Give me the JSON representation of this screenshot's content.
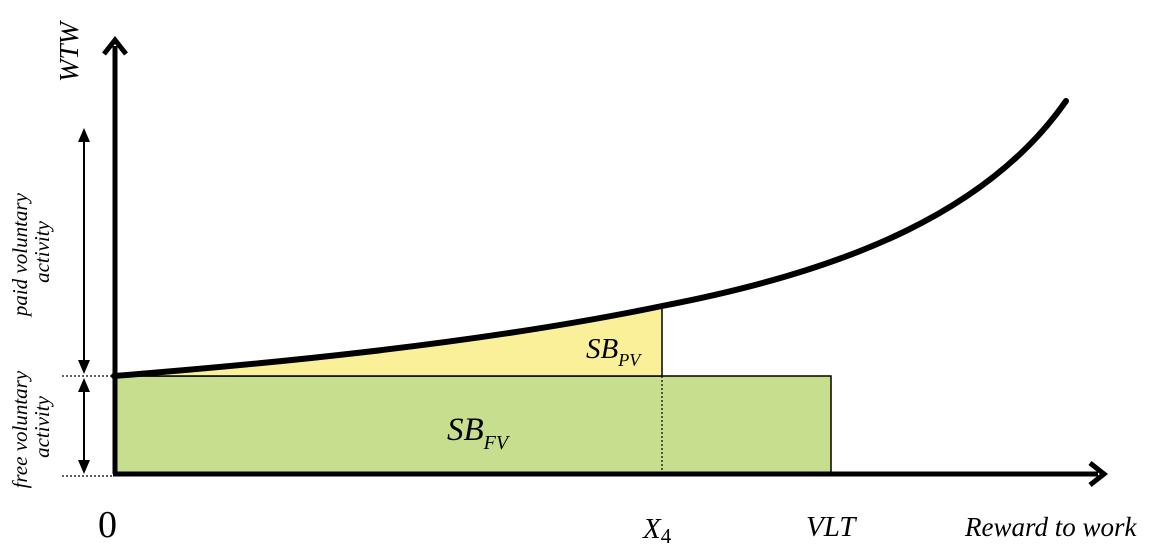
{
  "axes": {
    "y_label": "WTW",
    "x_label": "Reward to work",
    "origin_label": "0"
  },
  "x_ticks": {
    "x4": {
      "main": "X",
      "sub": "4"
    },
    "vlt": "VLT"
  },
  "regions": {
    "sb_pv": {
      "main": "SB",
      "sub": "PV",
      "fill": "#fbf09a"
    },
    "sb_fv": {
      "main": "SB",
      "sub": "FV",
      "fill": "#c7de8e"
    }
  },
  "side_labels": {
    "paid": [
      "paid voluntary",
      "activity"
    ],
    "free": [
      "free voluntary",
      "activity"
    ]
  }
}
